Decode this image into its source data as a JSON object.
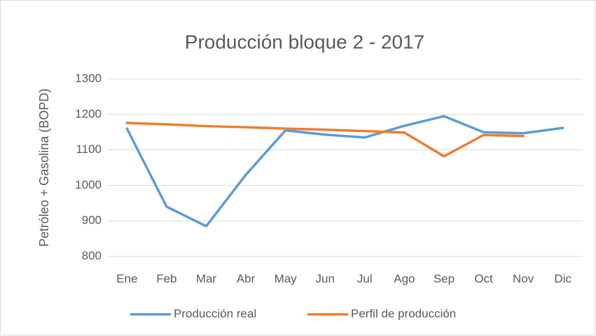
{
  "chart_data": {
    "type": "line",
    "title": "Producción bloque 2 - 2017",
    "y_label": "Petróleo + Gasolina (BOPD)",
    "categories": [
      "Ene",
      "Feb",
      "Mar",
      "Abr",
      "May",
      "Jun",
      "Jul",
      "Ago",
      "Sep",
      "Oct",
      "Nov",
      "Dic"
    ],
    "series": [
      {
        "name": "Producción real",
        "color": "#5b9bd5",
        "values": [
          1160,
          940,
          885,
          1030,
          1155,
          1143,
          1135,
          1168,
          1195,
          1150,
          1147,
          1162
        ]
      },
      {
        "name": "Perfil de producción",
        "color": "#ed7d31",
        "values": [
          1176,
          1172,
          1167,
          1164,
          1160,
          1157,
          1153,
          1149,
          1082,
          1142,
          1139,
          null
        ]
      }
    ],
    "ylim": [
      800,
      1300
    ],
    "yticks": [
      800,
      900,
      1000,
      1100,
      1200,
      1300
    ],
    "grid": true,
    "legend": "bottom"
  }
}
